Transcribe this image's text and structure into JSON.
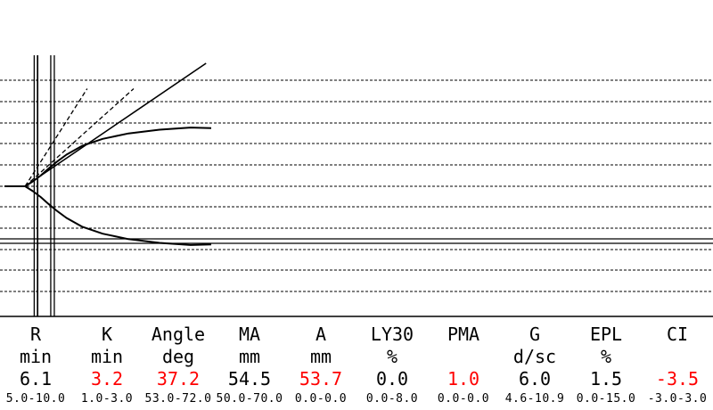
{
  "chart_data": {
    "type": "line",
    "title": "",
    "xlabel": "",
    "ylabel": "",
    "grid": true,
    "markers": {
      "R": 6.1,
      "K": 3.2
    },
    "time_range": [
      0,
      60
    ],
    "amplitude_range": [
      -50,
      50
    ],
    "series": [
      {
        "x": [
          0,
          4,
          5.5,
          7,
          8.5,
          10,
          12,
          15,
          19,
          24,
          30,
          36,
          40
        ],
        "y": [
          0,
          0,
          2.5,
          5.5,
          9,
          12.3,
          16.2,
          20.7,
          24.3,
          27.1,
          29,
          30.1,
          29.8
        ]
      },
      {
        "x": [
          0,
          4,
          5.5,
          7,
          8.5,
          10,
          12,
          15,
          19,
          24,
          30,
          36,
          40
        ],
        "y": [
          0,
          0,
          -2.5,
          -5.5,
          -9,
          -12.3,
          -16.2,
          -20.7,
          -24.3,
          -27.1,
          -29,
          -30.1,
          -29.8
        ]
      },
      {
        "x": [
          4,
          16
        ],
        "y": [
          0,
          50
        ]
      },
      {
        "x": [
          4,
          25
        ],
        "y": [
          0,
          50
        ]
      },
      {
        "x": [
          4,
          39
        ],
        "y": [
          0,
          63
        ]
      }
    ]
  },
  "parameters": [
    {
      "name": "R",
      "unit": "min",
      "value": "6.1",
      "range": "5.0-10.0",
      "abnormal": false
    },
    {
      "name": "K",
      "unit": "min",
      "value": "3.2",
      "range": "1.0-3.0",
      "abnormal": true
    },
    {
      "name": "Angle",
      "unit": "deg",
      "value": "37.2",
      "range": "53.0-72.0",
      "abnormal": true
    },
    {
      "name": "MA",
      "unit": "mm",
      "value": "54.5",
      "range": "50.0-70.0",
      "abnormal": false
    },
    {
      "name": "A",
      "unit": "mm",
      "value": "53.7",
      "range": "0.0-0.0",
      "abnormal": true
    },
    {
      "name": "LY30",
      "unit": "%",
      "value": "0.0",
      "range": "0.0-8.0",
      "abnormal": false
    },
    {
      "name": "PMA",
      "unit": "",
      "value": "1.0",
      "range": "0.0-0.0",
      "abnormal": true
    },
    {
      "name": "G",
      "unit": "d/sc",
      "value": "6.0",
      "range": "4.6-10.9",
      "abnormal": false
    },
    {
      "name": "EPL",
      "unit": "%",
      "value": "1.5",
      "range": "0.0-15.0",
      "abnormal": false
    },
    {
      "name": "CI",
      "unit": "",
      "value": "-3.5",
      "range": "-3.0-3.0",
      "abnormal": true
    }
  ]
}
